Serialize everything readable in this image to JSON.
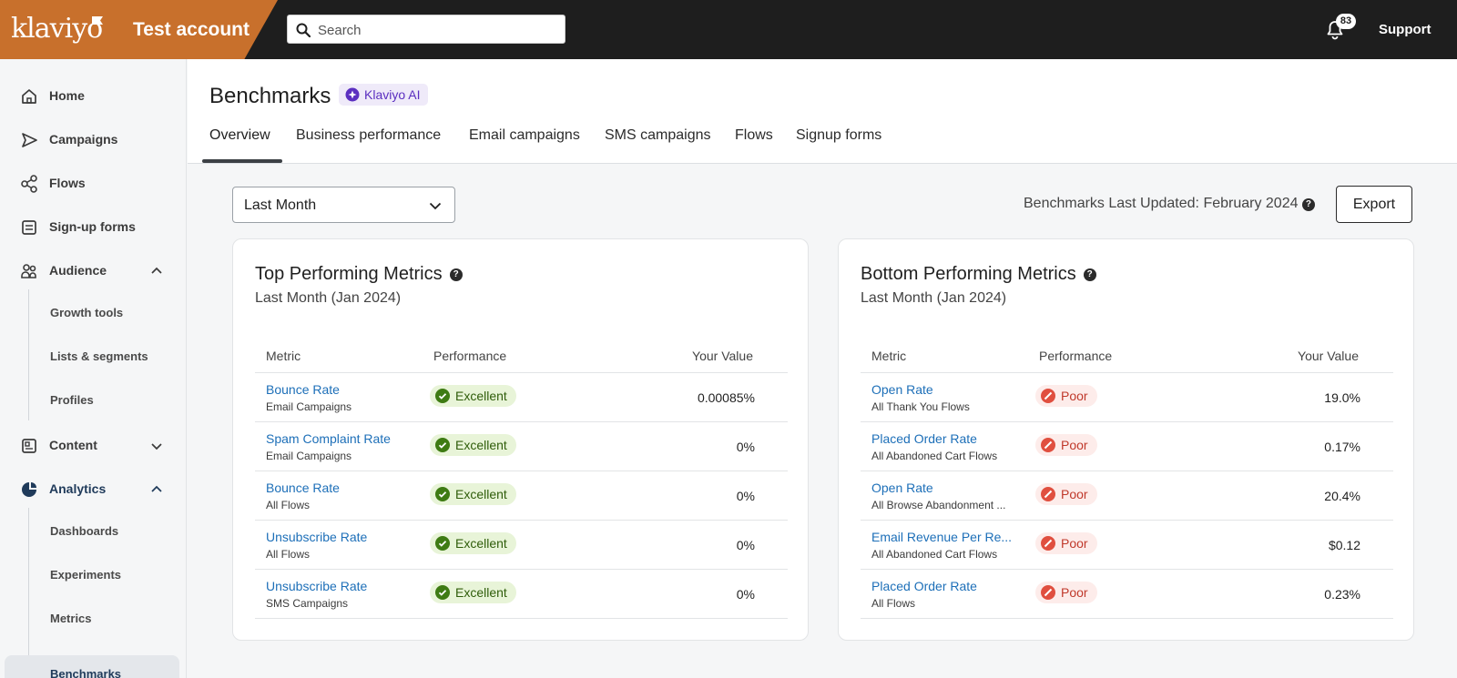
{
  "app": {
    "logo_text": "klaviyo",
    "account_name": "Test account",
    "search_placeholder": "Search",
    "notification_count": "83",
    "support_label": "Support"
  },
  "colors": {
    "brand": "#c8702c",
    "topbar": "#1e1e1e",
    "link": "#1d6fb8",
    "excellent_bg": "#e8f4d8",
    "excellent_icon": "#3e7b13",
    "poor_bg": "#fdecea",
    "poor_icon": "#e04f3f",
    "ai_purple": "#5b2fc0"
  },
  "sidebar": {
    "items": [
      {
        "label": "Home",
        "icon": "home-icon"
      },
      {
        "label": "Campaigns",
        "icon": "send-icon"
      },
      {
        "label": "Flows",
        "icon": "flows-icon"
      },
      {
        "label": "Sign-up forms",
        "icon": "form-icon"
      },
      {
        "label": "Audience",
        "icon": "audience-icon",
        "chevron": "up"
      },
      {
        "label": "Content",
        "icon": "content-icon",
        "chevron": "down"
      },
      {
        "label": "Analytics",
        "icon": "analytics-icon",
        "chevron": "up"
      }
    ],
    "audience_sub": [
      "Growth tools",
      "Lists & segments",
      "Profiles"
    ],
    "analytics_sub": [
      "Dashboards",
      "Experiments",
      "Metrics",
      "Benchmarks"
    ],
    "active_item": "Benchmarks"
  },
  "page": {
    "title": "Benchmarks",
    "ai_badge": "Klaviyo AI",
    "tabs": [
      "Overview",
      "Business performance",
      "Email campaigns",
      "SMS campaigns",
      "Flows",
      "Signup forms"
    ],
    "active_tab": "Overview",
    "date_filter": "Last Month",
    "updated_text": "Benchmarks Last Updated: February 2024",
    "export_label": "Export"
  },
  "top_card": {
    "title": "Top Performing Metrics",
    "subtitle": "Last Month (Jan 2024)",
    "columns": [
      "Metric",
      "Performance",
      "Your Value"
    ],
    "rows": [
      {
        "metric": "Bounce Rate",
        "source": "Email Campaigns",
        "performance": "Excellent",
        "value": "0.00085%"
      },
      {
        "metric": "Spam Complaint Rate",
        "source": "Email Campaigns",
        "performance": "Excellent",
        "value": "0%"
      },
      {
        "metric": "Bounce Rate",
        "source": "All Flows",
        "performance": "Excellent",
        "value": "0%"
      },
      {
        "metric": "Unsubscribe Rate",
        "source": "All Flows",
        "performance": "Excellent",
        "value": "0%"
      },
      {
        "metric": "Unsubscribe Rate",
        "source": "SMS Campaigns",
        "performance": "Excellent",
        "value": "0%"
      }
    ]
  },
  "bottom_card": {
    "title": "Bottom Performing Metrics",
    "subtitle": "Last Month (Jan 2024)",
    "columns": [
      "Metric",
      "Performance",
      "Your Value"
    ],
    "rows": [
      {
        "metric": "Open Rate",
        "source": "All Thank You Flows",
        "performance": "Poor",
        "value": "19.0%"
      },
      {
        "metric": "Placed Order Rate",
        "source": "All Abandoned Cart Flows",
        "performance": "Poor",
        "value": "0.17%"
      },
      {
        "metric": "Open Rate",
        "source": "All Browse Abandonment ...",
        "performance": "Poor",
        "value": "20.4%"
      },
      {
        "metric": "Email Revenue Per Re...",
        "source": "All Abandoned Cart Flows",
        "performance": "Poor",
        "value": "$0.12"
      },
      {
        "metric": "Placed Order Rate",
        "source": "All Flows",
        "performance": "Poor",
        "value": "0.23%"
      }
    ]
  }
}
